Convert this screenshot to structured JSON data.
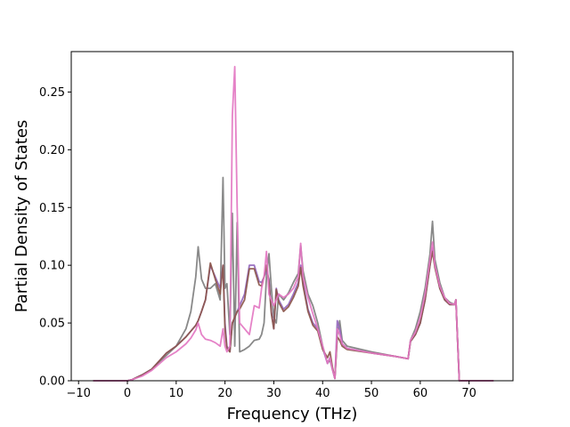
{
  "chart_data": {
    "type": "line",
    "title": "",
    "xlabel": "Frequency (THz)",
    "ylabel": "Partial Density of States",
    "xlim": [
      -11.5,
      79
    ],
    "ylim": [
      0,
      0.285
    ],
    "xticks": [
      -10,
      0,
      10,
      20,
      30,
      40,
      50,
      60,
      70
    ],
    "xtick_labels": [
      "−10",
      "0",
      "10",
      "20",
      "30",
      "40",
      "50",
      "60",
      "70"
    ],
    "yticks": [
      0.0,
      0.05,
      0.1,
      0.15,
      0.2,
      0.25
    ],
    "ytick_labels": [
      "0.00",
      "0.05",
      "0.10",
      "0.15",
      "0.20",
      "0.25"
    ],
    "grid": false,
    "legend": "none",
    "series": [
      {
        "color": "#7f7f7f",
        "x": [
          -7,
          0,
          1,
          3,
          5,
          8,
          10,
          12,
          13,
          14,
          14.5,
          15.2,
          16,
          17,
          18,
          19,
          19.6,
          20,
          20.4,
          21,
          21.5,
          22,
          22.5,
          23,
          24,
          25,
          26,
          27,
          27.5,
          28,
          28.5,
          29,
          29.5,
          30,
          30.5,
          31,
          32,
          33,
          34,
          35,
          35.5,
          36,
          37,
          38,
          39,
          40,
          41,
          41.5,
          42,
          42.5,
          43,
          43.5,
          44,
          45,
          50,
          55,
          57.5,
          58,
          59,
          60,
          61,
          62,
          62.5,
          63,
          64,
          65,
          66,
          67,
          67.3,
          67.6,
          68,
          75
        ],
        "y": [
          0,
          0,
          0.001,
          0.005,
          0.01,
          0.022,
          0.03,
          0.045,
          0.06,
          0.09,
          0.116,
          0.088,
          0.08,
          0.08,
          0.084,
          0.07,
          0.176,
          0.08,
          0.084,
          0.04,
          0.145,
          0.03,
          0.137,
          0.025,
          0.027,
          0.03,
          0.035,
          0.036,
          0.04,
          0.05,
          0.09,
          0.11,
          0.08,
          0.055,
          0.05,
          0.075,
          0.07,
          0.076,
          0.085,
          0.093,
          0.117,
          0.095,
          0.075,
          0.065,
          0.05,
          0.03,
          0.015,
          0.018,
          0.01,
          0.002,
          0.04,
          0.052,
          0.035,
          0.03,
          0.025,
          0.021,
          0.019,
          0.035,
          0.045,
          0.06,
          0.08,
          0.11,
          0.138,
          0.105,
          0.085,
          0.072,
          0.068,
          0.066,
          0.07,
          0.04,
          0.0,
          0
        ]
      },
      {
        "color": "#9467bd",
        "x": [
          -7,
          0,
          1,
          3,
          5,
          8,
          10,
          12,
          13,
          14,
          14.5,
          15.2,
          16,
          17,
          18,
          19,
          19.6,
          20,
          20.4,
          21,
          21.5,
          22,
          22.5,
          23,
          24,
          25,
          26,
          27,
          27.5,
          28,
          28.5,
          29,
          29.5,
          30,
          30.5,
          31,
          32,
          33,
          34,
          35,
          35.5,
          36,
          37,
          38,
          39,
          40,
          41,
          41.5,
          42,
          42.5,
          43,
          43.5,
          44,
          45,
          50,
          55,
          57.5,
          58,
          59,
          60,
          61,
          62,
          62.5,
          63,
          64,
          65,
          66,
          67,
          67.3,
          67.6,
          68,
          75
        ],
        "y": [
          0,
          0,
          0.001,
          0.005,
          0.01,
          0.024,
          0.03,
          0.038,
          0.043,
          0.048,
          0.052,
          0.06,
          0.07,
          0.1,
          0.09,
          0.08,
          0.1,
          0.05,
          0.03,
          0.025,
          0.05,
          0.055,
          0.06,
          0.065,
          0.075,
          0.1,
          0.1,
          0.086,
          0.085,
          0.09,
          0.095,
          0.088,
          0.06,
          0.045,
          0.08,
          0.07,
          0.062,
          0.066,
          0.075,
          0.085,
          0.1,
          0.085,
          0.062,
          0.05,
          0.045,
          0.028,
          0.015,
          0.02,
          0.01,
          0.002,
          0.052,
          0.045,
          0.032,
          0.028,
          0.024,
          0.021,
          0.019,
          0.034,
          0.04,
          0.05,
          0.07,
          0.1,
          0.115,
          0.1,
          0.08,
          0.07,
          0.066,
          0.066,
          0.07,
          0.04,
          0.0,
          0
        ]
      },
      {
        "color": "#8c564b",
        "x": [
          -7,
          0,
          1,
          3,
          5,
          8,
          10,
          12,
          13,
          14,
          14.5,
          15.2,
          16,
          17,
          18,
          19,
          19.6,
          20,
          20.4,
          21,
          21.5,
          22,
          22.5,
          23,
          24,
          25,
          26,
          27,
          27.5,
          28,
          28.5,
          29,
          29.5,
          30,
          30.5,
          31,
          32,
          33,
          34,
          35,
          35.5,
          36,
          37,
          38,
          39,
          40,
          41,
          41.5,
          42,
          42.5,
          43,
          43.5,
          44,
          45,
          50,
          55,
          57.5,
          58,
          59,
          60,
          61,
          62,
          62.5,
          63,
          64,
          65,
          66,
          67,
          67.3,
          67.6,
          68,
          75
        ],
        "y": [
          0,
          0,
          0.001,
          0.005,
          0.01,
          0.024,
          0.03,
          0.038,
          0.043,
          0.048,
          0.052,
          0.06,
          0.07,
          0.102,
          0.088,
          0.075,
          0.1,
          0.045,
          0.028,
          0.025,
          0.05,
          0.055,
          0.06,
          0.062,
          0.07,
          0.097,
          0.097,
          0.083,
          0.082,
          0.09,
          0.1,
          0.085,
          0.058,
          0.045,
          0.079,
          0.068,
          0.06,
          0.064,
          0.072,
          0.082,
          0.098,
          0.082,
          0.06,
          0.048,
          0.043,
          0.027,
          0.02,
          0.025,
          0.012,
          0.002,
          0.038,
          0.035,
          0.03,
          0.027,
          0.024,
          0.021,
          0.019,
          0.034,
          0.04,
          0.05,
          0.07,
          0.1,
          0.112,
          0.098,
          0.08,
          0.07,
          0.066,
          0.066,
          0.07,
          0.04,
          0.0,
          0
        ]
      },
      {
        "color": "#e377c2",
        "x": [
          -7,
          0,
          1,
          3,
          5,
          8,
          10,
          12,
          13,
          14,
          14.5,
          15.2,
          16,
          17,
          18,
          19,
          19.6,
          20,
          20.4,
          21,
          21.5,
          22,
          22.5,
          23,
          24,
          25,
          26,
          27,
          27.5,
          28,
          28.5,
          29,
          29.5,
          30,
          30.5,
          31,
          32,
          33,
          34,
          35,
          35.5,
          36,
          37,
          38,
          39,
          40,
          41,
          41.5,
          42,
          42.5,
          43,
          43.5,
          44,
          45,
          50,
          55,
          57.5,
          58,
          59,
          60,
          61,
          62,
          62.5,
          63,
          64,
          65,
          66,
          67,
          67.3,
          67.6,
          68,
          75
        ],
        "y": [
          0,
          0,
          0.001,
          0.004,
          0.009,
          0.02,
          0.025,
          0.032,
          0.037,
          0.044,
          0.05,
          0.04,
          0.036,
          0.035,
          0.033,
          0.03,
          0.045,
          0.03,
          0.025,
          0.03,
          0.23,
          0.272,
          0.15,
          0.05,
          0.045,
          0.04,
          0.065,
          0.063,
          0.08,
          0.09,
          0.112,
          0.075,
          0.07,
          0.065,
          0.07,
          0.075,
          0.072,
          0.075,
          0.08,
          0.09,
          0.119,
          0.09,
          0.072,
          0.058,
          0.045,
          0.03,
          0.015,
          0.02,
          0.01,
          0.002,
          0.045,
          0.04,
          0.032,
          0.028,
          0.024,
          0.021,
          0.019,
          0.035,
          0.042,
          0.055,
          0.075,
          0.105,
          0.12,
          0.1,
          0.082,
          0.072,
          0.067,
          0.066,
          0.07,
          0.04,
          0.0,
          0
        ]
      }
    ]
  }
}
